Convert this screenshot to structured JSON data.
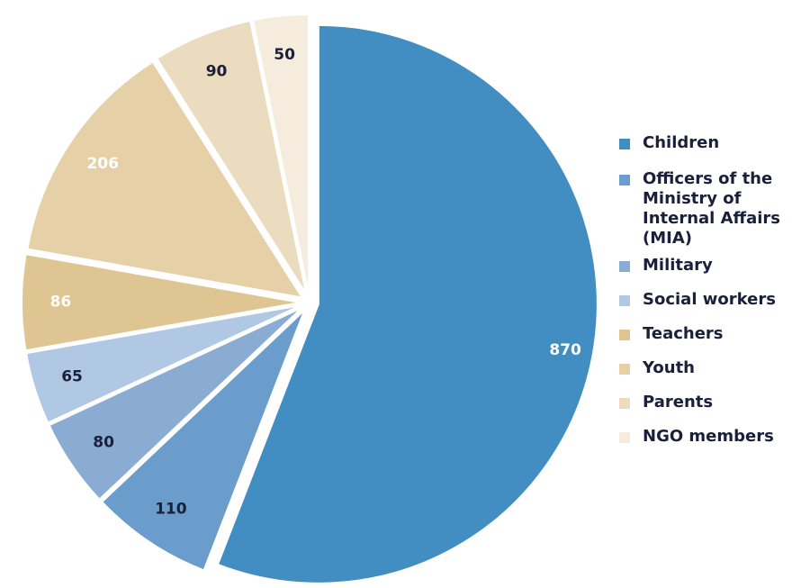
{
  "chart_data": {
    "type": "pie",
    "title": "",
    "slices": [
      {
        "label": "Children",
        "value": 870,
        "color": "#428dc2",
        "label_color": "#ffffff"
      },
      {
        "label": "Officers of the Ministry of Internal Affairs (MIA)",
        "value": 110,
        "color": "#6a9dcb",
        "label_color": "#1a1f3a"
      },
      {
        "label": "Military",
        "value": 80,
        "color": "#8aacd2",
        "label_color": "#1a1f3a"
      },
      {
        "label": "Social workers",
        "value": 65,
        "color": "#b1c8e4",
        "label_color": "#1a1f3a"
      },
      {
        "label": "Teachers",
        "value": 86,
        "color": "#dfc592",
        "label_color": "#ffffff"
      },
      {
        "label": "Youth",
        "value": 206,
        "color": "#e6d0a7",
        "label_color": "#ffffff"
      },
      {
        "label": "Parents",
        "value": 90,
        "color": "#ecdcbf",
        "label_color": "#1a1f3a"
      },
      {
        "label": "NGO members",
        "value": 50,
        "color": "#f5ecdd",
        "label_color": "#1a1f3a"
      }
    ],
    "legend_position": "right",
    "start_angle_deg": 0,
    "direction": "clockwise",
    "exploded": true
  },
  "legend": {
    "items": [
      "Children",
      "Officers of the Ministry of Internal Affairs (MIA)",
      "Military",
      "Social workers",
      "Teachers",
      "Youth",
      "Parents",
      "NGO members"
    ]
  }
}
